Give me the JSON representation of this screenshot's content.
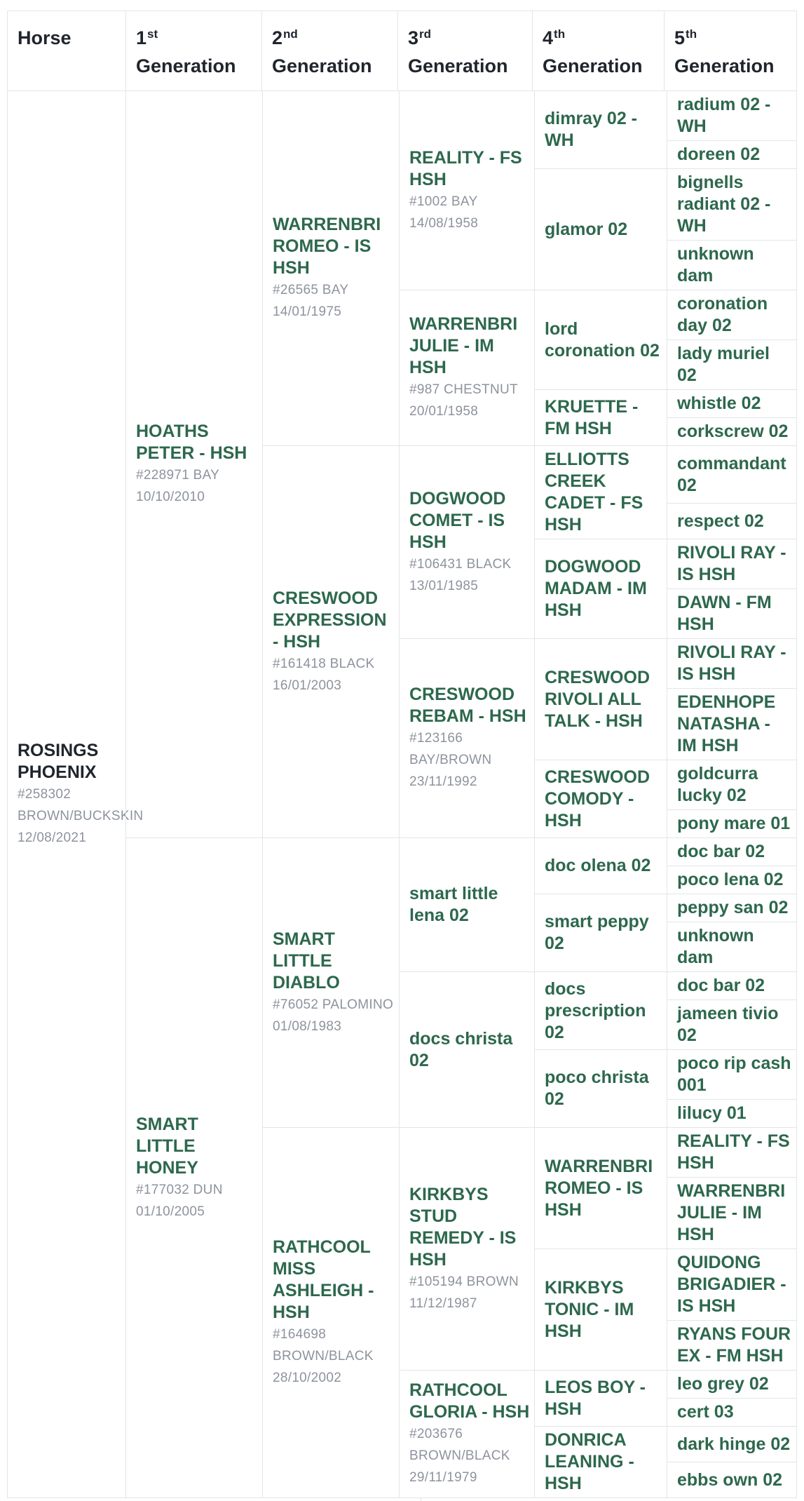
{
  "colors": {
    "name_green": "#2d684d",
    "detail_gray": "#8d939d",
    "header_dark": "#20252d",
    "grid_line": "#e3e5e9"
  },
  "header": {
    "columns": [
      {
        "label": "Horse",
        "ordinal": "",
        "suffix": ""
      },
      {
        "label": "Generation",
        "ordinal": "1",
        "suffix": "st"
      },
      {
        "label": "Generation",
        "ordinal": "2",
        "suffix": "nd"
      },
      {
        "label": "Generation",
        "ordinal": "3",
        "suffix": "rd"
      },
      {
        "label": "Generation",
        "ordinal": "4",
        "suffix": "th"
      },
      {
        "label": "Generation",
        "ordinal": "5",
        "suffix": "th"
      }
    ]
  },
  "pedigree": {
    "name": "ROSINGS PHOENIX",
    "reg": "#258302",
    "color": "BROWN/BUCKSKIN",
    "dob": "12/08/2021",
    "emphasis": "dark",
    "sire": {
      "name": "HOATHS PETER - HSH",
      "reg": "#228971",
      "color": "BAY",
      "dob": "10/10/2010",
      "sire": {
        "name": "WARRENBRI ROMEO - IS HSH",
        "reg": "#26565",
        "color": "BAY",
        "dob": "14/01/1975",
        "sire": {
          "name": "REALITY - FS HSH",
          "reg": "#1002",
          "color": "BAY",
          "dob": "14/08/1958",
          "sire": {
            "name": "dimray 02 - WH",
            "sire": {
              "name": "radium 02 - WH"
            },
            "dam": {
              "name": "doreen 02"
            }
          },
          "dam": {
            "name": "glamor 02",
            "sire": {
              "name": "bignells radiant 02 - WH"
            },
            "dam": {
              "name": "unknown dam"
            }
          }
        },
        "dam": {
          "name": "WARRENBRI JULIE - IM HSH",
          "reg": "#987",
          "color": "CHESTNUT",
          "dob": "20/01/1958",
          "sire": {
            "name": "lord coronation 02",
            "sire": {
              "name": "coronation day 02"
            },
            "dam": {
              "name": "lady muriel 02"
            }
          },
          "dam": {
            "name": "KRUETTE - FM HSH",
            "sire": {
              "name": "whistle 02"
            },
            "dam": {
              "name": "corkscrew 02"
            }
          }
        }
      },
      "dam": {
        "name": "CRESWOOD EXPRESSION - HSH",
        "reg": "#161418",
        "color": "BLACK",
        "dob": "16/01/2003",
        "sire": {
          "name": "DOGWOOD COMET - IS HSH",
          "reg": "#106431",
          "color": "BLACK",
          "dob": "13/01/1985",
          "sire": {
            "name": "ELLIOTTS CREEK CADET - FS HSH",
            "sire": {
              "name": "commandant 02"
            },
            "dam": {
              "name": "respect 02"
            }
          },
          "dam": {
            "name": "DOGWOOD MADAM - IM HSH",
            "sire": {
              "name": "RIVOLI RAY - IS HSH"
            },
            "dam": {
              "name": "DAWN - FM HSH"
            }
          }
        },
        "dam": {
          "name": "CRESWOOD REBAM - HSH",
          "reg": "#123166",
          "color": "BAY/BROWN",
          "dob": "23/11/1992",
          "sire": {
            "name": "CRESWOOD RIVOLI ALL TALK - HSH",
            "sire": {
              "name": "RIVOLI RAY - IS HSH"
            },
            "dam": {
              "name": "EDENHOPE NATASHA - IM HSH"
            }
          },
          "dam": {
            "name": "CRESWOOD COMODY - HSH",
            "sire": {
              "name": "goldcurra lucky 02"
            },
            "dam": {
              "name": "pony mare 01"
            }
          }
        }
      }
    },
    "dam": {
      "name": "SMART LITTLE HONEY",
      "reg": "#177032",
      "color": "DUN",
      "dob": "01/10/2005",
      "sire": {
        "name": "SMART LITTLE DIABLO",
        "reg": "#76052",
        "color": "PALOMINO",
        "dob": "01/08/1983",
        "sire": {
          "name": "smart little lena 02",
          "sire": {
            "name": "doc olena 02",
            "sire": {
              "name": "doc bar 02"
            },
            "dam": {
              "name": "poco lena 02"
            }
          },
          "dam": {
            "name": "smart peppy 02",
            "sire": {
              "name": "peppy san 02"
            },
            "dam": {
              "name": "unknown dam"
            }
          }
        },
        "dam": {
          "name": "docs christa 02",
          "sire": {
            "name": "docs prescription 02",
            "sire": {
              "name": "doc bar 02"
            },
            "dam": {
              "name": "jameen tivio 02"
            }
          },
          "dam": {
            "name": "poco christa 02",
            "sire": {
              "name": "poco rip cash 001"
            },
            "dam": {
              "name": "lilucy 01"
            }
          }
        }
      },
      "dam": {
        "name": "RATHCOOL MISS ASHLEIGH - HSH",
        "reg": "#164698",
        "color": "BROWN/BLACK",
        "dob": "28/10/2002",
        "sire": {
          "name": "KIRKBYS STUD REMEDY - IS HSH",
          "reg": "#105194",
          "color": "BROWN",
          "dob": "11/12/1987",
          "sire": {
            "name": "WARRENBRI ROMEO - IS HSH",
            "sire": {
              "name": "REALITY - FS HSH"
            },
            "dam": {
              "name": "WARRENBRI JULIE - IM HSH"
            }
          },
          "dam": {
            "name": "KIRKBYS TONIC - IM HSH",
            "sire": {
              "name": "QUIDONG BRIGADIER - IS HSH"
            },
            "dam": {
              "name": "RYANS FOUR EX - FM HSH"
            }
          }
        },
        "dam": {
          "name": "RATHCOOL GLORIA - HSH",
          "reg": "#203676",
          "color": "BROWN/BLACK",
          "dob": "29/11/1979",
          "sire": {
            "name": "LEOS BOY - HSH",
            "sire": {
              "name": "leo grey 02"
            },
            "dam": {
              "name": "cert 03"
            }
          },
          "dam": {
            "name": "DONRICA LEANING - HSH",
            "sire": {
              "name": "dark hinge 02"
            },
            "dam": {
              "name": "ebbs own 02"
            }
          }
        }
      }
    }
  }
}
